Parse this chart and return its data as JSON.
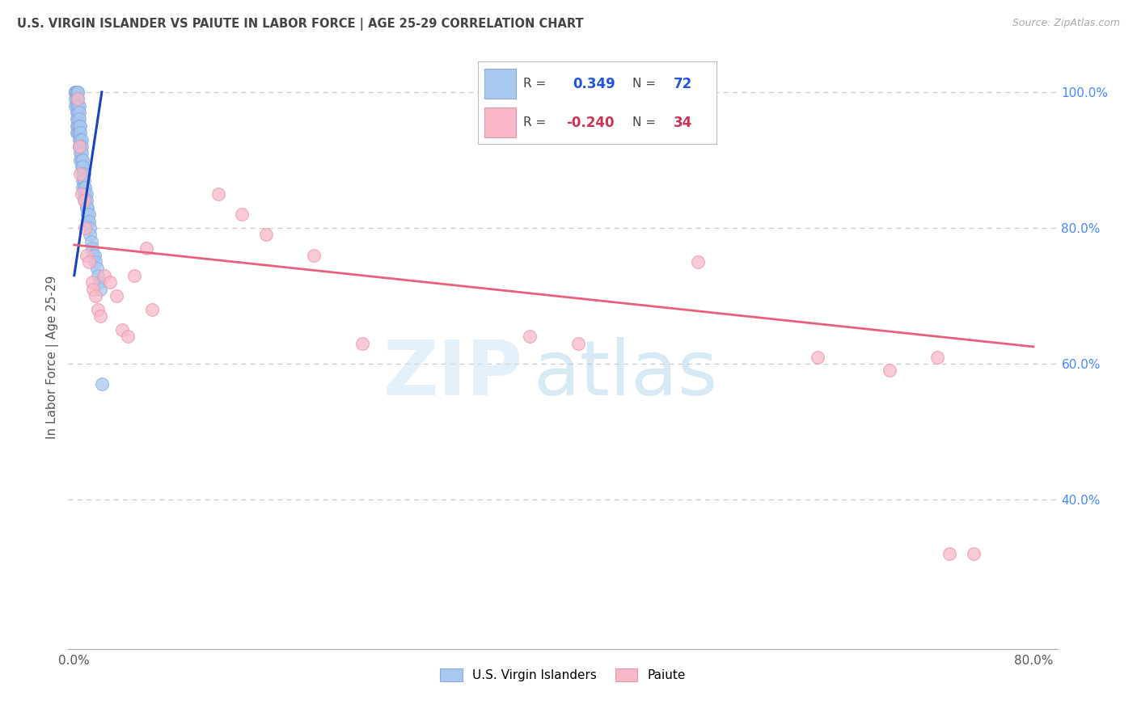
{
  "title": "U.S. VIRGIN ISLANDER VS PAIUTE IN LABOR FORCE | AGE 25-29 CORRELATION CHART",
  "source": "Source: ZipAtlas.com",
  "ylabel": "In Labor Force | Age 25-29",
  "xlim": [
    -0.005,
    0.82
  ],
  "ylim": [
    0.18,
    1.04
  ],
  "xtick_positions": [
    0.0,
    0.1,
    0.2,
    0.3,
    0.4,
    0.5,
    0.6,
    0.7,
    0.8
  ],
  "xticklabels": [
    "0.0%",
    "",
    "",
    "",
    "",
    "",
    "",
    "",
    "80.0%"
  ],
  "ytick_positions": [
    0.4,
    0.6,
    0.8,
    1.0
  ],
  "ytick_labels": [
    "40.0%",
    "60.0%",
    "80.0%",
    "100.0%"
  ],
  "blue_R": 0.349,
  "blue_N": 72,
  "pink_R": -0.24,
  "pink_N": 34,
  "blue_color": "#a8c8f0",
  "blue_edge_color": "#88aadd",
  "pink_color": "#f8b8c8",
  "pink_edge_color": "#e898a8",
  "blue_line_color": "#1a44bb",
  "pink_line_color": "#e8607a",
  "legend_blue_label": "U.S. Virgin Islanders",
  "legend_pink_label": "Paiute",
  "watermark_zip": "ZIP",
  "watermark_atlas": "atlas",
  "grid_color": "#cccccc",
  "blue_x": [
    0.001,
    0.001,
    0.001,
    0.001,
    0.001,
    0.002,
    0.002,
    0.002,
    0.002,
    0.002,
    0.002,
    0.002,
    0.002,
    0.002,
    0.003,
    0.003,
    0.003,
    0.003,
    0.003,
    0.003,
    0.003,
    0.003,
    0.004,
    0.004,
    0.004,
    0.004,
    0.004,
    0.004,
    0.004,
    0.005,
    0.005,
    0.005,
    0.005,
    0.005,
    0.005,
    0.006,
    0.006,
    0.006,
    0.006,
    0.006,
    0.007,
    0.007,
    0.007,
    0.007,
    0.007,
    0.008,
    0.008,
    0.008,
    0.008,
    0.009,
    0.009,
    0.009,
    0.01,
    0.01,
    0.01,
    0.011,
    0.011,
    0.011,
    0.012,
    0.012,
    0.013,
    0.013,
    0.014,
    0.015,
    0.016,
    0.017,
    0.018,
    0.019,
    0.02,
    0.021,
    0.022,
    0.023
  ],
  "blue_y": [
    1.0,
    1.0,
    1.0,
    0.99,
    0.98,
    1.0,
    1.0,
    1.0,
    0.99,
    0.98,
    0.97,
    0.96,
    0.95,
    0.94,
    1.0,
    1.0,
    0.99,
    0.98,
    0.97,
    0.96,
    0.95,
    0.94,
    0.98,
    0.97,
    0.96,
    0.95,
    0.94,
    0.93,
    0.92,
    0.95,
    0.94,
    0.93,
    0.92,
    0.91,
    0.9,
    0.93,
    0.92,
    0.91,
    0.9,
    0.89,
    0.9,
    0.89,
    0.88,
    0.87,
    0.86,
    0.88,
    0.87,
    0.86,
    0.85,
    0.86,
    0.85,
    0.84,
    0.85,
    0.84,
    0.83,
    0.83,
    0.82,
    0.81,
    0.82,
    0.81,
    0.8,
    0.79,
    0.78,
    0.77,
    0.76,
    0.76,
    0.75,
    0.74,
    0.73,
    0.72,
    0.71,
    0.57
  ],
  "pink_x": [
    0.003,
    0.004,
    0.005,
    0.006,
    0.008,
    0.009,
    0.01,
    0.012,
    0.015,
    0.016,
    0.018,
    0.02,
    0.022,
    0.025,
    0.03,
    0.035,
    0.04,
    0.045,
    0.05,
    0.06,
    0.065,
    0.12,
    0.14,
    0.16,
    0.2,
    0.24,
    0.38,
    0.42,
    0.52,
    0.62,
    0.68,
    0.72,
    0.73,
    0.75
  ],
  "pink_y": [
    0.99,
    0.92,
    0.88,
    0.85,
    0.84,
    0.8,
    0.76,
    0.75,
    0.72,
    0.71,
    0.7,
    0.68,
    0.67,
    0.73,
    0.72,
    0.7,
    0.65,
    0.64,
    0.73,
    0.77,
    0.68,
    0.85,
    0.82,
    0.79,
    0.76,
    0.63,
    0.64,
    0.63,
    0.75,
    0.61,
    0.59,
    0.61,
    0.32,
    0.32
  ],
  "pink_line_x0": 0.0,
  "pink_line_y0": 0.775,
  "pink_line_x1": 0.8,
  "pink_line_y1": 0.625,
  "blue_line_x0": 0.0,
  "blue_line_y0": 0.73,
  "blue_line_x1": 0.023,
  "blue_line_y1": 1.0
}
